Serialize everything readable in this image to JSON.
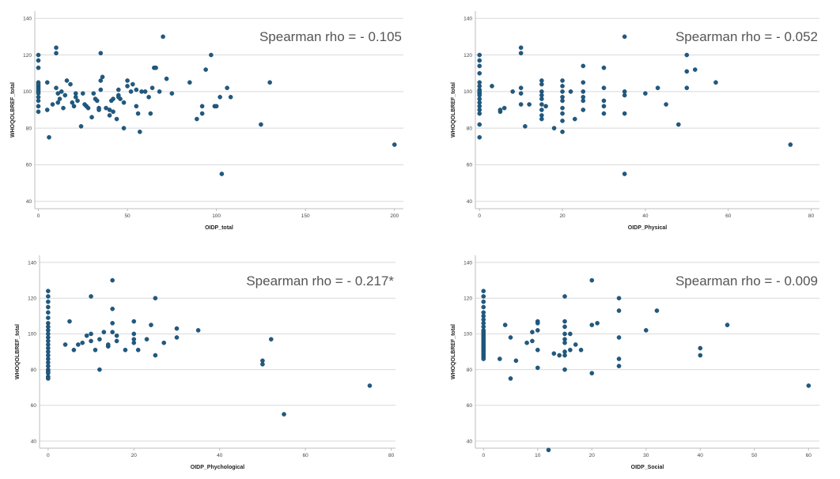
{
  "chart_data": [
    {
      "type": "scatter",
      "annotation": "Spearman rho = - 0.105",
      "xlabel": "OIDP_total",
      "ylabel": "WHOQOLBREF_total",
      "xlim": [
        -2,
        205
      ],
      "ylim": [
        36,
        144
      ],
      "xticks": [
        0,
        50,
        100,
        150,
        200
      ],
      "yticks": [
        40,
        60,
        80,
        100,
        120,
        140
      ],
      "grid": "horizontal",
      "marker_color": "#1f5a82",
      "x": [
        0,
        0,
        0,
        0,
        0,
        0,
        0,
        0,
        0,
        0,
        0,
        0,
        0,
        0,
        5,
        5,
        6,
        8,
        10,
        10,
        10,
        11,
        11,
        12,
        13,
        14,
        15,
        16,
        18,
        19,
        20,
        21,
        21,
        22,
        24,
        25,
        26,
        27,
        28,
        30,
        31,
        32,
        33,
        34,
        34,
        35,
        35,
        35,
        36,
        38,
        40,
        40,
        41,
        42,
        42,
        44,
        45,
        45,
        45,
        46,
        48,
        48,
        50,
        50,
        52,
        53,
        55,
        55,
        56,
        57,
        58,
        60,
        62,
        63,
        64,
        65,
        66,
        68,
        70,
        72,
        75,
        85,
        89,
        92,
        92,
        94,
        97,
        99,
        100,
        102,
        103,
        106,
        108,
        125,
        130,
        200
      ],
      "y": [
        120,
        117,
        113,
        105,
        103,
        102,
        101,
        100,
        99,
        97,
        95,
        92,
        89,
        104,
        105,
        90,
        75,
        93,
        124,
        121,
        102,
        94,
        99,
        96,
        100,
        91,
        98,
        106,
        104,
        94,
        92,
        99,
        97,
        95,
        81,
        99,
        93,
        92,
        91,
        86,
        99,
        96,
        95,
        91,
        90,
        121,
        106,
        101,
        108,
        91,
        87,
        90,
        95,
        96,
        89,
        85,
        98,
        97,
        101,
        96,
        80,
        94,
        106,
        103,
        100,
        104,
        101,
        92,
        88,
        78,
        100,
        100,
        97,
        88,
        102,
        113,
        113,
        100,
        130,
        107,
        99,
        105,
        85,
        92,
        88,
        112,
        120,
        92,
        92,
        97,
        55,
        102,
        97,
        82,
        105,
        71
      ]
    },
    {
      "type": "scatter",
      "annotation": "Spearman rho = - 0.052",
      "xlabel": "OIDP_Physical",
      "ylabel": "WHOQOLBREF_total",
      "xlim": [
        -1,
        82
      ],
      "ylim": [
        36,
        144
      ],
      "xticks": [
        0,
        20,
        40,
        60,
        80
      ],
      "yticks": [
        40,
        60,
        80,
        100,
        120,
        140
      ],
      "grid": "horizontal",
      "marker_color": "#1f5a82",
      "x": [
        0,
        0,
        0,
        0,
        0,
        0,
        0,
        0,
        0,
        0,
        0,
        0,
        0,
        0,
        0,
        0,
        0,
        3,
        5,
        5,
        6,
        8,
        10,
        10,
        10,
        10,
        10,
        11,
        12,
        15,
        15,
        15,
        15,
        15,
        15,
        15,
        15,
        15,
        16,
        18,
        20,
        20,
        20,
        20,
        20,
        20,
        20,
        20,
        20,
        22,
        23,
        25,
        25,
        25,
        25,
        25,
        25,
        30,
        30,
        30,
        30,
        30,
        35,
        35,
        35,
        35,
        35,
        40,
        43,
        45,
        48,
        50,
        50,
        50,
        52,
        57,
        75
      ],
      "y": [
        120,
        117,
        114,
        110,
        105,
        103,
        101,
        99,
        98,
        96,
        94,
        92,
        90,
        88,
        82,
        75,
        100,
        103,
        89,
        90,
        91,
        100,
        124,
        121,
        102,
        99,
        93,
        81,
        93,
        106,
        104,
        100,
        98,
        96,
        93,
        90,
        87,
        85,
        92,
        80,
        106,
        103,
        100,
        97,
        95,
        91,
        88,
        84,
        78,
        100,
        85,
        114,
        105,
        100,
        97,
        95,
        90,
        113,
        102,
        95,
        92,
        88,
        130,
        100,
        98,
        88,
        55,
        99,
        102,
        93,
        82,
        120,
        111,
        102,
        112,
        105,
        71
      ]
    },
    {
      "type": "scatter",
      "annotation": "Spearman rho = - 0.217*",
      "xlabel": "OIDP_Phychological",
      "ylabel": "WHOQOLBREF_total",
      "xlim": [
        -2,
        81
      ],
      "ylim": [
        36,
        144
      ],
      "xticks": [
        0,
        20,
        40,
        60,
        80
      ],
      "yticks": [
        40,
        60,
        80,
        100,
        120,
        140
      ],
      "grid": "horizontal",
      "marker_color": "#1f5a82",
      "x": [
        0,
        0,
        0,
        0,
        0,
        0,
        0,
        0,
        0,
        0,
        0,
        0,
        0,
        0,
        0,
        0,
        0,
        0,
        0,
        0,
        0,
        0,
        0,
        0,
        4,
        5,
        6,
        7,
        8,
        9,
        10,
        10,
        10,
        11,
        12,
        12,
        13,
        14,
        14,
        15,
        15,
        15,
        15,
        16,
        16,
        18,
        20,
        20,
        20,
        20,
        21,
        23,
        24,
        25,
        25,
        27,
        30,
        30,
        35,
        50,
        50,
        52,
        55,
        75
      ],
      "y": [
        124,
        121,
        118,
        115,
        112,
        109,
        106,
        104,
        102,
        100,
        98,
        96,
        94,
        92,
        90,
        88,
        86,
        84,
        82,
        80,
        79,
        78,
        76,
        75,
        94,
        107,
        91,
        94,
        95,
        99,
        121,
        100,
        96,
        91,
        97,
        80,
        101,
        93,
        94,
        130,
        114,
        106,
        101,
        99,
        96,
        91,
        107,
        100,
        97,
        95,
        91,
        97,
        105,
        120,
        88,
        95,
        98,
        103,
        102,
        83,
        85,
        97,
        55,
        71
      ]
    },
    {
      "type": "scatter",
      "annotation": "Spearman rho = - 0.009",
      "xlabel": "OIDP_Social",
      "ylabel": "WHOQOLBREF_total",
      "xlim": [
        -1.5,
        62
      ],
      "ylim": [
        36,
        144
      ],
      "xticks": [
        0,
        10,
        20,
        30,
        40,
        50,
        60
      ],
      "yticks": [
        40,
        60,
        80,
        100,
        120,
        140
      ],
      "grid": "horizontal",
      "marker_color": "#1f5a82",
      "x": [
        0,
        0,
        0,
        0,
        0,
        0,
        0,
        0,
        0,
        0,
        0,
        0,
        0,
        0,
        0,
        0,
        0,
        0,
        0,
        0,
        0,
        0,
        0,
        0,
        0,
        0,
        3,
        4,
        5,
        5,
        6,
        8,
        9,
        9,
        10,
        10,
        10,
        10,
        10,
        12,
        13,
        14,
        15,
        15,
        15,
        15,
        15,
        15,
        15,
        15,
        15,
        16,
        16,
        17,
        18,
        20,
        20,
        20,
        21,
        25,
        25,
        25,
        25,
        25,
        30,
        32,
        40,
        40,
        45,
        60
      ],
      "y": [
        124,
        121,
        118,
        115,
        112,
        110,
        108,
        106,
        104,
        102,
        101,
        100,
        99,
        98,
        97,
        96,
        95,
        94,
        93,
        92,
        91,
        90,
        89,
        88,
        87,
        86,
        86,
        105,
        98,
        75,
        85,
        95,
        101,
        96,
        107,
        106,
        102,
        91,
        81,
        35,
        89,
        88,
        121,
        107,
        104,
        100,
        97,
        95,
        90,
        88,
        80,
        91,
        100,
        94,
        91,
        130,
        105,
        78,
        106,
        120,
        113,
        98,
        86,
        82,
        102,
        113,
        92,
        88,
        105,
        71
      ]
    }
  ]
}
